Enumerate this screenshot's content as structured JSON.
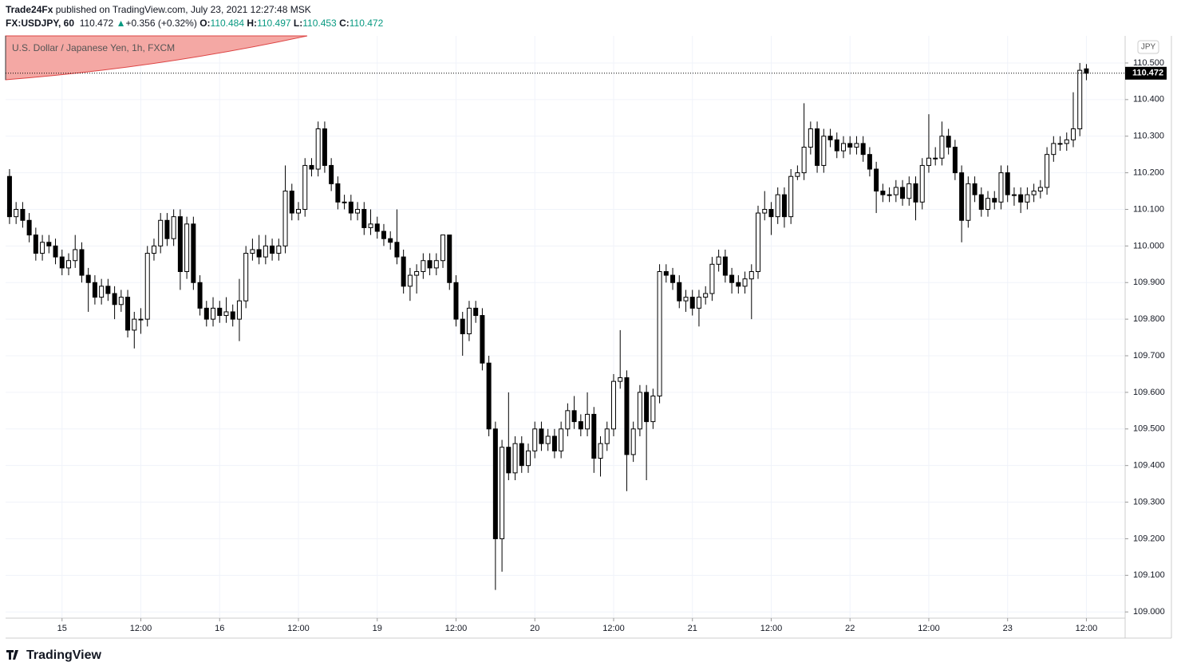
{
  "header": {
    "author": "Trade24Fx",
    "published": "published on TradingView.com, July 23, 2021 12:27:48 MSK",
    "symbol": "FX:USDJPY, 60",
    "change": "+0.356 (+0.32%)",
    "ohlc_labels": [
      "O:",
      "H:",
      "L:",
      "C:"
    ]
  },
  "chart_data": {
    "type": "candlestick",
    "title": "U.S. Dollar / Japanese Yen, 1h, FXCM",
    "currency": "JPY",
    "up_color": "#ffffff",
    "down_color": "#000000",
    "border_color": "#000000",
    "grid": true,
    "xlim": [
      -0.6,
      169.9
    ],
    "ylim": [
      108.983,
      110.574
    ],
    "xticks": [
      {
        "value": 8,
        "label": "15"
      },
      {
        "value": 20,
        "label": "12:00"
      },
      {
        "value": 32,
        "label": "16"
      },
      {
        "value": 44,
        "label": "12:00"
      },
      {
        "value": 56,
        "label": "19"
      },
      {
        "value": 68,
        "label": "12:00"
      },
      {
        "value": 80,
        "label": "20"
      },
      {
        "value": 92,
        "label": "12:00"
      },
      {
        "value": 104,
        "label": "21"
      },
      {
        "value": 116,
        "label": "12:00"
      },
      {
        "value": 128,
        "label": "22"
      },
      {
        "value": 140,
        "label": "12:00"
      },
      {
        "value": 152,
        "label": "23"
      },
      {
        "value": 164,
        "label": "12:00"
      }
    ],
    "yticks": [
      {
        "value": 109.0,
        "label": "109.000"
      },
      {
        "value": 109.1,
        "label": "109.100"
      },
      {
        "value": 109.2,
        "label": "109.200"
      },
      {
        "value": 109.3,
        "label": "109.300"
      },
      {
        "value": 109.4,
        "label": "109.400"
      },
      {
        "value": 109.5,
        "label": "109.500"
      },
      {
        "value": 109.6,
        "label": "109.600"
      },
      {
        "value": 109.7,
        "label": "109.700"
      },
      {
        "value": 109.8,
        "label": "109.800"
      },
      {
        "value": 109.9,
        "label": "109.900"
      },
      {
        "value": 110.0,
        "label": "110.000"
      },
      {
        "value": 110.1,
        "label": "110.100"
      },
      {
        "value": 110.2,
        "label": "110.200"
      },
      {
        "value": 110.3,
        "label": "110.300"
      },
      {
        "value": 110.4,
        "label": "110.400"
      },
      {
        "value": 110.5,
        "label": "110.500"
      }
    ],
    "candles": [
      [
        110.19,
        110.21,
        110.06,
        110.08
      ],
      [
        110.08,
        110.12,
        110.06,
        110.1
      ],
      [
        110.1,
        110.12,
        110.05,
        110.07
      ],
      [
        110.07,
        110.09,
        110.01,
        110.03
      ],
      [
        110.03,
        110.05,
        109.96,
        109.98
      ],
      [
        109.98,
        110.03,
        109.96,
        110.01
      ],
      [
        110.01,
        110.03,
        109.98,
        110.0
      ],
      [
        110.0,
        110.02,
        109.95,
        109.97
      ],
      [
        109.97,
        109.99,
        109.92,
        109.94
      ],
      [
        109.94,
        109.98,
        109.92,
        109.96
      ],
      [
        109.96,
        110.03,
        109.94,
        109.99
      ],
      [
        109.99,
        110.01,
        109.9,
        109.92
      ],
      [
        109.92,
        109.94,
        109.82,
        109.9
      ],
      [
        109.9,
        109.92,
        109.84,
        109.86
      ],
      [
        109.86,
        109.91,
        109.84,
        109.89
      ],
      [
        109.89,
        109.91,
        109.85,
        109.87
      ],
      [
        109.87,
        109.89,
        109.8,
        109.84
      ],
      [
        109.84,
        109.88,
        109.82,
        109.86
      ],
      [
        109.86,
        109.88,
        109.75,
        109.77
      ],
      [
        109.77,
        109.82,
        109.72,
        109.8
      ],
      [
        109.8,
        109.83,
        109.76,
        109.8
      ],
      [
        109.8,
        110.0,
        109.78,
        109.98
      ],
      [
        109.98,
        110.02,
        109.96,
        110.0
      ],
      [
        110.0,
        110.09,
        109.98,
        110.07
      ],
      [
        110.07,
        110.09,
        110.0,
        110.02
      ],
      [
        110.02,
        110.1,
        110.0,
        110.08
      ],
      [
        110.08,
        110.1,
        109.88,
        109.93
      ],
      [
        109.93,
        110.08,
        109.91,
        110.06
      ],
      [
        110.06,
        110.08,
        109.88,
        109.9
      ],
      [
        109.9,
        109.92,
        109.81,
        109.83
      ],
      [
        109.83,
        109.85,
        109.78,
        109.8
      ],
      [
        109.8,
        109.86,
        109.78,
        109.83
      ],
      [
        109.83,
        109.85,
        109.79,
        109.81
      ],
      [
        109.81,
        109.86,
        109.79,
        109.82
      ],
      [
        109.82,
        109.84,
        109.78,
        109.8
      ],
      [
        109.8,
        109.91,
        109.74,
        109.85
      ],
      [
        109.85,
        110.0,
        109.83,
        109.98
      ],
      [
        109.98,
        110.02,
        109.96,
        109.99
      ],
      [
        109.99,
        110.03,
        109.95,
        109.97
      ],
      [
        109.97,
        110.03,
        109.95,
        110.0
      ],
      [
        110.0,
        110.02,
        109.96,
        109.98
      ],
      [
        109.98,
        110.02,
        109.96,
        110.0
      ],
      [
        110.0,
        110.22,
        109.98,
        110.15
      ],
      [
        110.15,
        110.17,
        110.07,
        110.09
      ],
      [
        110.09,
        110.12,
        110.07,
        110.1
      ],
      [
        110.1,
        110.24,
        110.08,
        110.22
      ],
      [
        110.22,
        110.24,
        110.19,
        110.21
      ],
      [
        110.21,
        110.34,
        110.19,
        110.32
      ],
      [
        110.32,
        110.34,
        110.2,
        110.22
      ],
      [
        110.22,
        110.24,
        110.15,
        110.17
      ],
      [
        110.17,
        110.19,
        110.1,
        110.12
      ],
      [
        110.12,
        110.14,
        110.1,
        110.12
      ],
      [
        110.12,
        110.14,
        110.07,
        110.09
      ],
      [
        110.09,
        110.12,
        110.07,
        110.1
      ],
      [
        110.1,
        110.12,
        110.03,
        110.05
      ],
      [
        110.05,
        110.1,
        110.03,
        110.06
      ],
      [
        110.06,
        110.08,
        110.02,
        110.04
      ],
      [
        110.04,
        110.06,
        110.0,
        110.02
      ],
      [
        110.02,
        110.04,
        109.99,
        110.01
      ],
      [
        110.01,
        110.1,
        109.95,
        109.97
      ],
      [
        109.97,
        109.99,
        109.87,
        109.89
      ],
      [
        109.89,
        109.94,
        109.85,
        109.92
      ],
      [
        109.92,
        109.95,
        109.87,
        109.93
      ],
      [
        109.93,
        109.98,
        109.91,
        109.96
      ],
      [
        109.96,
        109.98,
        109.92,
        109.94
      ],
      [
        109.94,
        109.98,
        109.92,
        109.96
      ],
      [
        109.96,
        110.03,
        109.94,
        110.03
      ],
      [
        110.03,
        110.03,
        109.88,
        109.9
      ],
      [
        109.9,
        109.92,
        109.78,
        109.8
      ],
      [
        109.8,
        109.82,
        109.7,
        109.76
      ],
      [
        109.76,
        109.85,
        109.74,
        109.83
      ],
      [
        109.83,
        109.85,
        109.79,
        109.81
      ],
      [
        109.81,
        109.83,
        109.66,
        109.68
      ],
      [
        109.68,
        109.7,
        109.48,
        109.5
      ],
      [
        109.5,
        109.52,
        109.06,
        109.2
      ],
      [
        109.2,
        109.47,
        109.11,
        109.45
      ],
      [
        109.45,
        109.6,
        109.36,
        109.38
      ],
      [
        109.38,
        109.48,
        109.36,
        109.46
      ],
      [
        109.46,
        109.48,
        109.38,
        109.4
      ],
      [
        109.4,
        109.46,
        109.38,
        109.44
      ],
      [
        109.44,
        109.52,
        109.42,
        109.5
      ],
      [
        109.5,
        109.52,
        109.44,
        109.46
      ],
      [
        109.46,
        109.5,
        109.44,
        109.48
      ],
      [
        109.48,
        109.5,
        109.42,
        109.44
      ],
      [
        109.44,
        109.52,
        109.42,
        109.5
      ],
      [
        109.5,
        109.57,
        109.48,
        109.55
      ],
      [
        109.55,
        109.59,
        109.5,
        109.52
      ],
      [
        109.52,
        109.54,
        109.48,
        109.5
      ],
      [
        109.5,
        109.6,
        109.48,
        109.54
      ],
      [
        109.54,
        109.56,
        109.38,
        109.42
      ],
      [
        109.42,
        109.48,
        109.37,
        109.46
      ],
      [
        109.46,
        109.52,
        109.44,
        109.5
      ],
      [
        109.5,
        109.65,
        109.48,
        109.63
      ],
      [
        109.63,
        109.77,
        109.61,
        109.64
      ],
      [
        109.64,
        109.66,
        109.33,
        109.43
      ],
      [
        109.43,
        109.52,
        109.41,
        109.5
      ],
      [
        109.5,
        109.62,
        109.48,
        109.6
      ],
      [
        109.6,
        109.62,
        109.36,
        109.52
      ],
      [
        109.52,
        109.61,
        109.5,
        109.59
      ],
      [
        109.59,
        109.95,
        109.57,
        109.93
      ],
      [
        109.93,
        109.95,
        109.9,
        109.92
      ],
      [
        109.92,
        109.94,
        109.88,
        109.9
      ],
      [
        109.9,
        109.92,
        109.83,
        109.85
      ],
      [
        109.85,
        109.88,
        109.82,
        109.86
      ],
      [
        109.86,
        109.88,
        109.81,
        109.83
      ],
      [
        109.83,
        109.88,
        109.78,
        109.86
      ],
      [
        109.86,
        109.89,
        109.84,
        109.87
      ],
      [
        109.87,
        109.97,
        109.85,
        109.95
      ],
      [
        109.95,
        109.99,
        109.93,
        109.97
      ],
      [
        109.97,
        109.99,
        109.9,
        109.92
      ],
      [
        109.92,
        109.94,
        109.87,
        109.9
      ],
      [
        109.9,
        109.92,
        109.87,
        109.89
      ],
      [
        109.89,
        109.93,
        109.87,
        109.91
      ],
      [
        109.91,
        109.95,
        109.8,
        109.93
      ],
      [
        109.93,
        110.11,
        109.91,
        110.09
      ],
      [
        110.09,
        110.15,
        110.07,
        110.1
      ],
      [
        110.1,
        110.12,
        110.03,
        110.08
      ],
      [
        110.08,
        110.16,
        110.06,
        110.14
      ],
      [
        110.14,
        110.16,
        110.05,
        110.08
      ],
      [
        110.08,
        110.21,
        110.06,
        110.19
      ],
      [
        110.19,
        110.22,
        110.18,
        110.2
      ],
      [
        110.2,
        110.39,
        110.18,
        110.27
      ],
      [
        110.27,
        110.34,
        110.25,
        110.32
      ],
      [
        110.32,
        110.34,
        110.2,
        110.22
      ],
      [
        110.22,
        110.32,
        110.2,
        110.3
      ],
      [
        110.3,
        110.32,
        110.27,
        110.29
      ],
      [
        110.29,
        110.31,
        110.24,
        110.26
      ],
      [
        110.26,
        110.3,
        110.24,
        110.28
      ],
      [
        110.28,
        110.3,
        110.25,
        110.27
      ],
      [
        110.27,
        110.3,
        110.25,
        110.28
      ],
      [
        110.28,
        110.3,
        110.23,
        110.25
      ],
      [
        110.25,
        110.27,
        110.19,
        110.21
      ],
      [
        110.21,
        110.23,
        110.09,
        110.15
      ],
      [
        110.15,
        110.17,
        110.12,
        110.14
      ],
      [
        110.14,
        110.16,
        110.12,
        110.14
      ],
      [
        110.14,
        110.18,
        110.12,
        110.16
      ],
      [
        110.16,
        110.18,
        110.11,
        110.13
      ],
      [
        110.13,
        110.19,
        110.11,
        110.17
      ],
      [
        110.17,
        110.19,
        110.07,
        110.12
      ],
      [
        110.12,
        110.24,
        110.1,
        110.22
      ],
      [
        110.22,
        110.36,
        110.2,
        110.24
      ],
      [
        110.24,
        110.27,
        110.22,
        110.24
      ],
      [
        110.24,
        110.34,
        110.22,
        110.3
      ],
      [
        110.3,
        110.32,
        110.25,
        110.27
      ],
      [
        110.27,
        110.29,
        110.18,
        110.2
      ],
      [
        110.2,
        110.22,
        110.01,
        110.07
      ],
      [
        110.07,
        110.19,
        110.05,
        110.17
      ],
      [
        110.17,
        110.19,
        110.12,
        110.14
      ],
      [
        110.14,
        110.16,
        110.08,
        110.1
      ],
      [
        110.1,
        110.15,
        110.08,
        110.13
      ],
      [
        110.13,
        110.15,
        110.1,
        110.12
      ],
      [
        110.12,
        110.22,
        110.1,
        110.2
      ],
      [
        110.2,
        110.22,
        110.12,
        110.14
      ],
      [
        110.14,
        110.16,
        110.11,
        110.14
      ],
      [
        110.14,
        110.16,
        110.09,
        110.12
      ],
      [
        110.12,
        110.16,
        110.1,
        110.14
      ],
      [
        110.14,
        110.17,
        110.12,
        110.15
      ],
      [
        110.15,
        110.18,
        110.13,
        110.16
      ],
      [
        110.16,
        110.27,
        110.14,
        110.25
      ],
      [
        110.25,
        110.3,
        110.23,
        110.28
      ],
      [
        110.28,
        110.3,
        110.26,
        110.28
      ],
      [
        110.28,
        110.31,
        110.26,
        110.29
      ],
      [
        110.29,
        110.42,
        110.27,
        110.32
      ],
      [
        110.32,
        110.5,
        110.3,
        110.48
      ],
      [
        110.484,
        110.497,
        110.453,
        110.472
      ]
    ]
  },
  "footer": {
    "logo": "TradingView"
  }
}
